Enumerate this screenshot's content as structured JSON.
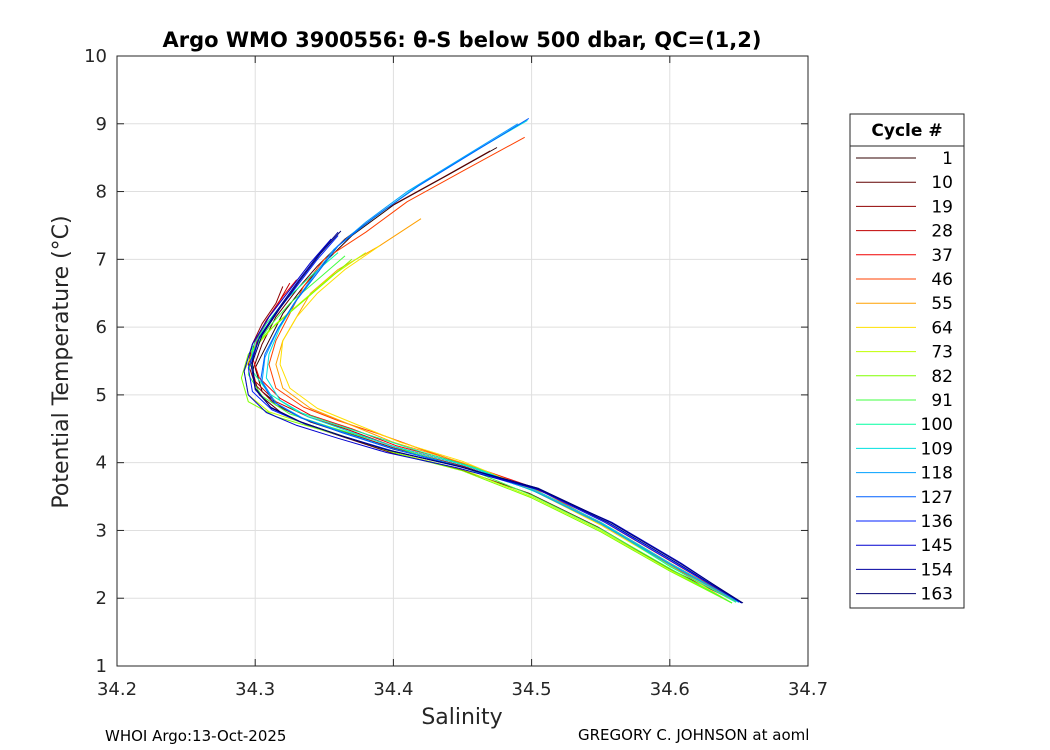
{
  "footer": {
    "left": "WHOI Argo:13-Oct-2025",
    "right": "GREGORY C. JOHNSON at aoml"
  },
  "chart_data": {
    "type": "line",
    "title": "Argo WMO 3900556: θ-S below 500 dbar,  QC=(1,2)",
    "xlabel": "Salinity",
    "ylabel": "Potential Temperature (°C)",
    "xlim": [
      34.2,
      34.7
    ],
    "ylim": [
      1,
      10
    ],
    "xticks": [
      "34.2",
      "34.3",
      "34.4",
      "34.5",
      "34.6",
      "34.7"
    ],
    "yticks": [
      "1",
      "2",
      "3",
      "4",
      "5",
      "6",
      "7",
      "8",
      "9",
      "10"
    ],
    "grid": true,
    "legend": {
      "title": "Cycle #",
      "placement": "right-outside"
    },
    "series": [
      {
        "name": "1",
        "color": "#300000",
        "salinity": [
          34.475,
          34.44,
          34.4,
          34.37,
          34.35,
          34.335,
          34.32,
          34.31,
          34.3,
          34.305,
          34.32,
          34.34,
          34.37,
          34.4,
          34.45,
          34.5,
          34.55,
          34.6,
          34.65
        ],
        "theta": [
          8.65,
          8.25,
          7.8,
          7.35,
          6.95,
          6.6,
          6.2,
          5.8,
          5.4,
          5.05,
          4.8,
          4.6,
          4.4,
          4.2,
          3.95,
          3.6,
          3.1,
          2.5,
          1.95
        ]
      },
      {
        "name": "10",
        "color": "#600000",
        "salinity": [
          34.47,
          34.435,
          34.395,
          34.365,
          34.345,
          34.33,
          34.315,
          34.305,
          34.298,
          34.303,
          34.318,
          34.338,
          34.368,
          34.398,
          34.448,
          34.498,
          34.548,
          34.598,
          34.648
        ],
        "theta": [
          8.6,
          8.2,
          7.75,
          7.3,
          6.9,
          6.55,
          6.15,
          5.75,
          5.35,
          5.0,
          4.75,
          4.55,
          4.35,
          4.15,
          3.9,
          3.55,
          3.05,
          2.45,
          1.95
        ]
      },
      {
        "name": "19",
        "color": "#900000",
        "salinity": [
          34.32,
          34.315,
          34.305,
          34.298,
          34.295,
          34.3,
          34.315,
          34.335,
          34.365,
          34.4,
          34.45,
          34.5,
          34.55,
          34.6,
          34.648
        ],
        "theta": [
          6.6,
          6.35,
          6.05,
          5.75,
          5.45,
          5.15,
          4.85,
          4.65,
          4.45,
          4.22,
          3.95,
          3.6,
          3.1,
          2.5,
          1.95
        ]
      },
      {
        "name": "28",
        "color": "#c00000",
        "salinity": [
          34.325,
          34.318,
          34.308,
          34.3,
          34.296,
          34.3,
          34.315,
          34.338,
          34.368,
          34.4,
          34.45,
          34.5,
          34.55,
          34.6,
          34.65
        ],
        "theta": [
          6.65,
          6.4,
          6.1,
          5.8,
          5.5,
          5.2,
          4.9,
          4.68,
          4.48,
          4.24,
          3.97,
          3.62,
          3.12,
          2.52,
          1.95
        ]
      },
      {
        "name": "37",
        "color": "#f00000",
        "salinity": [
          34.33,
          34.32,
          34.31,
          34.302,
          34.298,
          34.303,
          34.318,
          34.34,
          34.37,
          34.402,
          34.452,
          34.502,
          34.552,
          34.602,
          34.65
        ],
        "theta": [
          6.7,
          6.45,
          6.15,
          5.85,
          5.55,
          5.25,
          4.95,
          4.7,
          4.5,
          4.25,
          3.98,
          3.63,
          3.13,
          2.53,
          1.95
        ]
      },
      {
        "name": "46",
        "color": "#ff4000",
        "salinity": [
          34.495,
          34.45,
          34.41,
          34.38,
          34.35,
          34.335,
          34.325,
          34.315,
          34.31,
          34.315,
          34.335,
          34.36,
          34.39,
          34.42,
          34.46,
          34.51,
          34.555,
          34.6,
          34.65
        ],
        "theta": [
          8.8,
          8.3,
          7.85,
          7.4,
          7.0,
          6.6,
          6.2,
          5.8,
          5.45,
          5.1,
          4.82,
          4.62,
          4.42,
          4.2,
          3.92,
          3.55,
          3.05,
          2.48,
          1.95
        ]
      },
      {
        "name": "55",
        "color": "#ffa000",
        "salinity": [
          34.42,
          34.39,
          34.36,
          34.34,
          34.33,
          34.32,
          34.315,
          34.32,
          34.34,
          34.37,
          34.4,
          34.45,
          34.5,
          34.55,
          34.6,
          34.648
        ],
        "theta": [
          7.6,
          7.2,
          6.85,
          6.5,
          6.15,
          5.8,
          5.45,
          5.1,
          4.8,
          4.55,
          4.3,
          4.0,
          3.6,
          3.1,
          2.5,
          1.95
        ]
      },
      {
        "name": "64",
        "color": "#ffe000",
        "salinity": [
          34.39,
          34.365,
          34.345,
          34.33,
          34.32,
          34.318,
          34.325,
          34.345,
          34.375,
          34.405,
          34.45,
          34.5,
          34.55,
          34.6,
          34.645
        ],
        "theta": [
          7.2,
          6.85,
          6.5,
          6.15,
          5.8,
          5.45,
          5.1,
          4.8,
          4.55,
          4.3,
          4.02,
          3.6,
          3.08,
          2.48,
          1.93
        ]
      },
      {
        "name": "73",
        "color": "#c0ff00",
        "salinity": [
          34.38,
          34.355,
          34.335,
          34.315,
          34.3,
          34.292,
          34.295,
          34.31,
          34.34,
          34.37,
          34.4,
          34.45,
          34.5,
          34.55,
          34.6,
          34.645
        ],
        "theta": [
          7.1,
          6.75,
          6.4,
          6.05,
          5.7,
          5.35,
          5.0,
          4.75,
          4.55,
          4.35,
          4.15,
          3.9,
          3.5,
          3.0,
          2.42,
          1.93
        ]
      },
      {
        "name": "82",
        "color": "#80ff00",
        "salinity": [
          34.37,
          34.35,
          34.33,
          34.31,
          34.295,
          34.29,
          34.295,
          34.315,
          34.345,
          34.375,
          34.405,
          34.45,
          34.5,
          34.55,
          34.6,
          34.645
        ],
        "theta": [
          7.0,
          6.65,
          6.3,
          5.95,
          5.6,
          5.25,
          4.9,
          4.68,
          4.5,
          4.32,
          4.12,
          3.88,
          3.48,
          2.98,
          2.4,
          1.93
        ]
      },
      {
        "name": "91",
        "color": "#40ff40",
        "salinity": [
          34.365,
          34.345,
          34.325,
          34.31,
          34.298,
          34.295,
          34.305,
          34.325,
          34.355,
          34.385,
          34.415,
          34.455,
          34.5,
          34.55,
          34.6,
          34.645
        ],
        "theta": [
          7.05,
          6.7,
          6.35,
          6.0,
          5.65,
          5.3,
          4.98,
          4.72,
          4.52,
          4.34,
          4.14,
          3.9,
          3.52,
          3.02,
          2.44,
          1.93
        ]
      },
      {
        "name": "100",
        "color": "#00ffa0",
        "salinity": [
          34.36,
          34.34,
          34.322,
          34.308,
          34.298,
          34.298,
          34.31,
          34.33,
          34.36,
          34.39,
          34.42,
          34.46,
          34.505,
          34.555,
          34.6,
          34.648
        ],
        "theta": [
          7.1,
          6.75,
          6.4,
          6.05,
          5.7,
          5.35,
          5.02,
          4.76,
          4.55,
          4.36,
          4.16,
          3.92,
          3.55,
          3.05,
          2.47,
          1.94
        ]
      },
      {
        "name": "109",
        "color": "#00e0e0",
        "salinity": [
          34.497,
          34.455,
          34.415,
          34.385,
          34.36,
          34.345,
          34.33,
          34.318,
          34.31,
          34.308,
          34.318,
          34.338,
          34.368,
          34.4,
          34.45,
          34.5,
          34.55,
          34.6,
          34.65
        ],
        "theta": [
          9.05,
          8.55,
          8.05,
          7.6,
          7.2,
          6.8,
          6.4,
          6.0,
          5.6,
          5.25,
          4.92,
          4.68,
          4.46,
          4.24,
          3.97,
          3.62,
          3.12,
          2.52,
          1.94
        ]
      },
      {
        "name": "118",
        "color": "#00a0ff",
        "salinity": [
          34.49,
          34.45,
          34.41,
          34.38,
          34.357,
          34.342,
          34.328,
          34.316,
          34.307,
          34.305,
          34.315,
          34.335,
          34.365,
          34.398,
          34.448,
          34.5,
          34.55,
          34.6,
          34.65
        ],
        "theta": [
          9.0,
          8.5,
          8.0,
          7.55,
          7.15,
          6.75,
          6.35,
          5.95,
          5.55,
          5.2,
          4.88,
          4.65,
          4.44,
          4.22,
          3.95,
          3.6,
          3.1,
          2.5,
          1.94
        ]
      },
      {
        "name": "127",
        "color": "#0060ff",
        "salinity": [
          34.498,
          34.458,
          34.418,
          34.386,
          34.36,
          34.345,
          34.33,
          34.317,
          34.307,
          34.304,
          34.313,
          34.333,
          34.363,
          34.397,
          34.447,
          34.505,
          34.555,
          34.605,
          34.652
        ],
        "theta": [
          9.08,
          8.58,
          8.08,
          7.62,
          7.2,
          6.8,
          6.4,
          6.0,
          5.6,
          5.22,
          4.9,
          4.66,
          4.44,
          4.22,
          3.95,
          3.62,
          3.12,
          2.52,
          1.93
        ]
      },
      {
        "name": "136",
        "color": "#0020ff",
        "salinity": [
          34.36,
          34.345,
          34.33,
          34.315,
          34.302,
          34.295,
          34.298,
          34.312,
          34.335,
          34.365,
          34.4,
          34.45,
          34.505,
          34.555,
          34.605,
          34.652
        ],
        "theta": [
          7.35,
          7.0,
          6.6,
          6.2,
          5.8,
          5.4,
          5.05,
          4.78,
          4.58,
          4.38,
          4.17,
          3.93,
          3.6,
          3.1,
          2.5,
          1.93
        ]
      },
      {
        "name": "145",
        "color": "#0000d0",
        "salinity": [
          34.355,
          34.34,
          34.325,
          34.31,
          34.298,
          34.292,
          34.295,
          34.308,
          34.33,
          34.36,
          34.395,
          34.447,
          34.505,
          34.558,
          34.608,
          34.652
        ],
        "theta": [
          7.3,
          6.95,
          6.55,
          6.15,
          5.75,
          5.35,
          5.0,
          4.74,
          4.55,
          4.36,
          4.15,
          3.92,
          3.6,
          3.12,
          2.52,
          1.93
        ]
      },
      {
        "name": "154",
        "color": "#0000a0",
        "salinity": [
          34.36,
          34.345,
          34.33,
          34.316,
          34.303,
          34.297,
          34.3,
          34.312,
          34.333,
          34.362,
          34.397,
          34.448,
          34.505,
          34.556,
          34.606,
          34.652
        ],
        "theta": [
          7.4,
          7.05,
          6.65,
          6.25,
          5.85,
          5.45,
          5.08,
          4.8,
          4.6,
          4.4,
          4.18,
          3.94,
          3.61,
          3.11,
          2.51,
          1.93
        ]
      },
      {
        "name": "163",
        "color": "#000070",
        "salinity": [
          34.362,
          34.347,
          34.332,
          34.318,
          34.305,
          34.298,
          34.3,
          34.311,
          34.332,
          34.36,
          34.395,
          34.447,
          34.505,
          34.557,
          34.607,
          34.653
        ],
        "theta": [
          7.42,
          7.08,
          6.68,
          6.28,
          5.88,
          5.48,
          5.1,
          4.82,
          4.61,
          4.41,
          4.19,
          3.95,
          3.62,
          3.12,
          2.52,
          1.93
        ]
      }
    ]
  }
}
